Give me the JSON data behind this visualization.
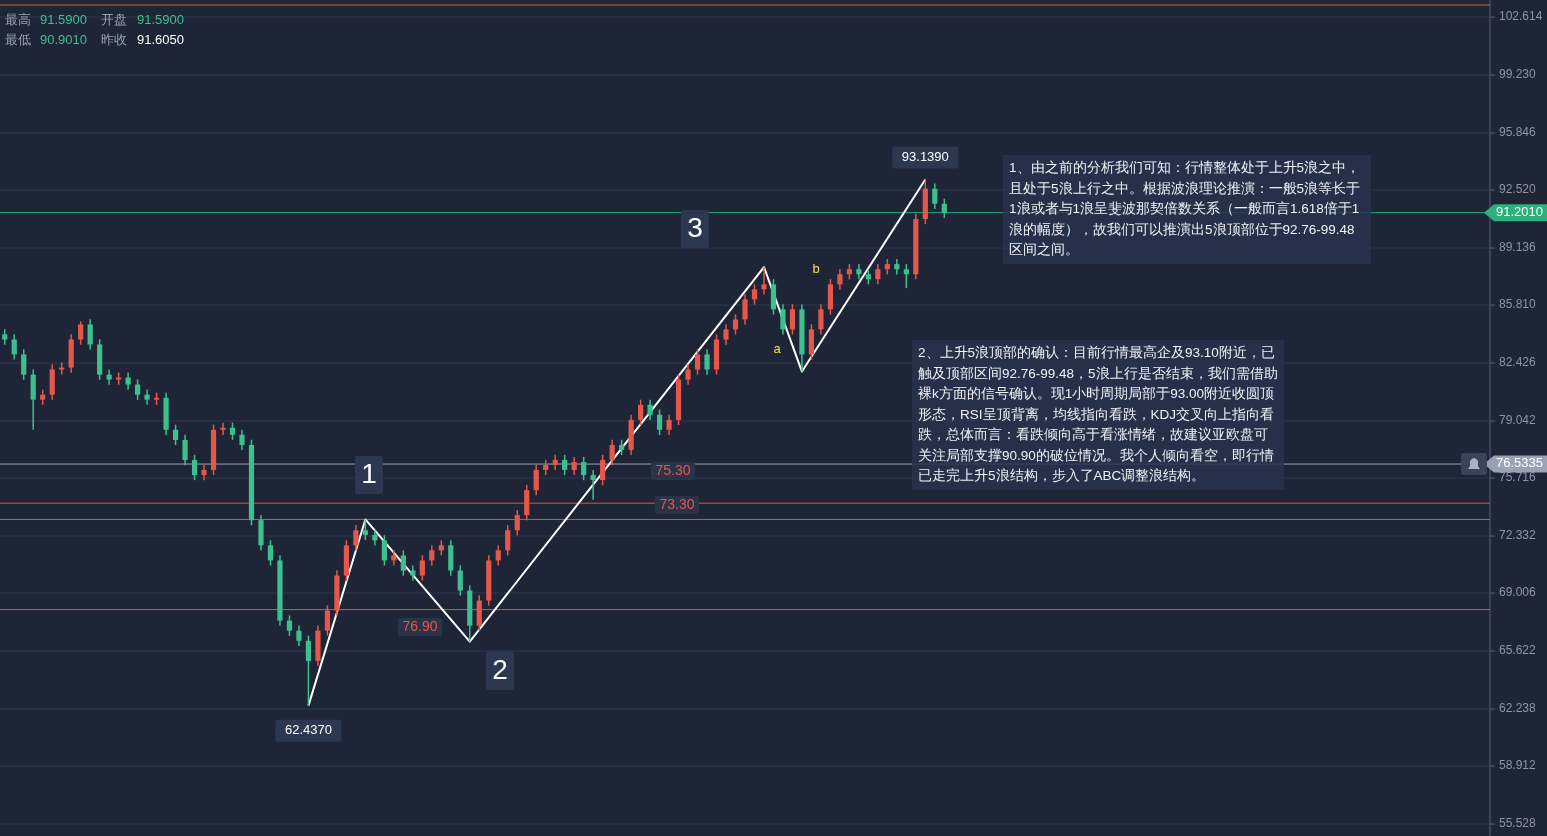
{
  "chart_data": {
    "type": "candlestick",
    "categories": [
      null,
      null,
      null,
      null,
      null,
      null,
      null,
      null,
      null,
      null,
      null,
      null,
      null,
      null,
      null,
      null,
      null,
      null,
      null,
      null,
      null,
      null,
      null,
      null,
      null,
      null,
      null,
      null,
      null,
      null,
      null,
      null,
      null,
      null,
      null,
      null,
      null,
      null,
      null,
      null,
      null,
      null,
      null,
      null,
      null,
      null,
      null,
      null,
      null,
      null,
      null,
      null,
      null,
      null,
      null,
      null,
      null,
      null,
      null,
      null,
      null,
      null,
      null,
      null,
      null,
      null,
      null,
      null,
      null,
      null,
      null,
      null,
      null,
      null,
      null,
      null,
      null,
      null,
      null,
      null,
      null,
      null,
      null,
      null,
      null,
      null,
      null,
      null,
      null,
      null,
      null,
      null,
      null,
      null,
      null,
      null,
      null,
      null,
      null,
      null,
      null,
      null,
      null,
      null,
      null,
      null,
      null,
      null,
      null,
      null,
      null,
      null,
      null,
      null,
      null,
      null,
      null,
      null,
      null,
      null,
      null,
      null,
      null,
      null,
      null,
      null,
      null,
      null,
      null,
      null,
      null,
      null,
      null,
      null,
      null,
      null,
      null,
      null,
      null,
      null,
      null,
      null,
      null,
      null,
      null,
      null,
      null,
      null,
      null,
      null,
      null,
      null,
      null,
      null,
      null,
      null,
      null
    ],
    "ohlc": [
      [
        84.1,
        84.4,
        83.5,
        83.8
      ],
      [
        83.8,
        84.1,
        82.63,
        82.93
      ],
      [
        82.93,
        83.23,
        81.45,
        81.75
      ],
      [
        81.75,
        82.05,
        78.53,
        80.29
      ],
      [
        80.29,
        80.88,
        79.99,
        80.58
      ],
      [
        80.58,
        82.35,
        80.28,
        82.05
      ],
      [
        82.05,
        82.46,
        81.75,
        82.16
      ],
      [
        82.16,
        84.1,
        81.86,
        83.8
      ],
      [
        83.8,
        84.86,
        83.5,
        84.68
      ],
      [
        84.68,
        84.98,
        83.21,
        83.51
      ],
      [
        83.51,
        83.81,
        81.45,
        81.75
      ],
      [
        81.75,
        82.05,
        81.16,
        81.46
      ],
      [
        81.46,
        81.88,
        81.16,
        81.58
      ],
      [
        81.58,
        81.88,
        80.87,
        81.17
      ],
      [
        81.17,
        81.47,
        80.28,
        80.58
      ],
      [
        80.58,
        80.88,
        79.99,
        80.29
      ],
      [
        80.29,
        80.7,
        79.99,
        80.4
      ],
      [
        80.4,
        80.7,
        78.23,
        78.53
      ],
      [
        78.53,
        78.83,
        77.64,
        77.94
      ],
      [
        77.94,
        78.24,
        76.47,
        76.77
      ],
      [
        76.77,
        77.07,
        75.59,
        75.89
      ],
      [
        75.89,
        76.49,
        75.59,
        76.19
      ],
      [
        76.19,
        78.83,
        75.89,
        78.53
      ],
      [
        78.53,
        78.95,
        78.23,
        78.65
      ],
      [
        78.65,
        78.95,
        77.94,
        78.24
      ],
      [
        78.24,
        78.54,
        77.35,
        77.65
      ],
      [
        77.65,
        77.95,
        72.96,
        73.26
      ],
      [
        73.26,
        73.56,
        71.49,
        71.79
      ],
      [
        71.79,
        72.09,
        70.61,
        70.91
      ],
      [
        70.91,
        71.21,
        67.1,
        67.4
      ],
      [
        67.4,
        67.7,
        66.51,
        66.81
      ],
      [
        66.81,
        67.11,
        65.92,
        66.22
      ],
      [
        66.22,
        66.52,
        62.437,
        65.05
      ],
      [
        65.05,
        67.11,
        64.75,
        66.81
      ],
      [
        66.81,
        68.28,
        66.51,
        67.98
      ],
      [
        67.98,
        70.33,
        67.68,
        70.03
      ],
      [
        70.03,
        72.09,
        69.73,
        71.79
      ],
      [
        71.79,
        72.97,
        71.49,
        72.67
      ],
      [
        72.67,
        73.3,
        72.1,
        72.4
      ],
      [
        72.4,
        72.7,
        71.78,
        72.08
      ],
      [
        72.08,
        72.38,
        70.61,
        70.91
      ],
      [
        70.91,
        71.5,
        70.61,
        71.2
      ],
      [
        71.2,
        71.5,
        70.02,
        70.32
      ],
      [
        70.32,
        70.62,
        69.73,
        70.03
      ],
      [
        70.03,
        71.21,
        69.73,
        70.91
      ],
      [
        70.91,
        71.8,
        70.61,
        71.5
      ],
      [
        71.5,
        72.09,
        71.2,
        71.79
      ],
      [
        71.79,
        72.09,
        70.02,
        70.32
      ],
      [
        70.32,
        70.62,
        68.85,
        69.15
      ],
      [
        69.15,
        69.45,
        66.17,
        67.1
      ],
      [
        67.1,
        68.87,
        66.8,
        68.57
      ],
      [
        68.57,
        71.21,
        68.27,
        70.91
      ],
      [
        70.91,
        71.8,
        70.61,
        71.5
      ],
      [
        71.5,
        72.97,
        71.2,
        72.67
      ],
      [
        72.67,
        73.85,
        72.37,
        73.55
      ],
      [
        73.55,
        75.31,
        73.25,
        75.01
      ],
      [
        75.01,
        76.49,
        74.71,
        76.19
      ],
      [
        76.19,
        76.78,
        75.89,
        76.48
      ],
      [
        76.48,
        77.07,
        76.18,
        76.77
      ],
      [
        76.77,
        77.07,
        75.89,
        76.19
      ],
      [
        76.19,
        76.95,
        75.89,
        76.65
      ],
      [
        76.65,
        76.95,
        75.59,
        75.89
      ],
      [
        75.89,
        76.19,
        74.45,
        75.6
      ],
      [
        75.6,
        77.07,
        75.3,
        76.77
      ],
      [
        76.77,
        77.95,
        76.47,
        77.65
      ],
      [
        77.65,
        77.95,
        77.06,
        77.36
      ],
      [
        77.36,
        79.41,
        77.06,
        79.11
      ],
      [
        79.11,
        80.29,
        78.81,
        79.99
      ],
      [
        79.99,
        80.29,
        79.11,
        79.41
      ],
      [
        79.41,
        79.71,
        78.23,
        78.53
      ],
      [
        78.53,
        79.41,
        78.23,
        79.11
      ],
      [
        79.11,
        81.76,
        78.81,
        81.46
      ],
      [
        81.46,
        82.35,
        81.16,
        82.05
      ],
      [
        82.05,
        83.23,
        81.75,
        82.93
      ],
      [
        82.93,
        83.23,
        81.75,
        82.05
      ],
      [
        82.05,
        84.1,
        81.75,
        83.8
      ],
      [
        83.8,
        84.69,
        83.5,
        84.39
      ],
      [
        84.39,
        85.27,
        84.09,
        84.97
      ],
      [
        84.97,
        86.44,
        84.67,
        86.14
      ],
      [
        86.14,
        87.03,
        85.84,
        86.73
      ],
      [
        86.73,
        88.02,
        86.43,
        87.02
      ],
      [
        87.02,
        87.32,
        85.26,
        85.56
      ],
      [
        85.56,
        85.86,
        84.09,
        84.39
      ],
      [
        84.39,
        85.86,
        84.09,
        85.56
      ],
      [
        85.56,
        85.86,
        81.93,
        82.93
      ],
      [
        82.93,
        84.69,
        82.63,
        84.39
      ],
      [
        84.39,
        85.86,
        84.09,
        85.56
      ],
      [
        85.56,
        87.32,
        85.26,
        87.02
      ],
      [
        87.02,
        87.91,
        86.72,
        87.61
      ],
      [
        87.61,
        88.2,
        87.31,
        87.9
      ],
      [
        87.9,
        88.2,
        87.31,
        87.61
      ],
      [
        87.61,
        87.91,
        87.02,
        87.32
      ],
      [
        87.32,
        88.2,
        87.02,
        87.9
      ],
      [
        87.9,
        88.5,
        87.6,
        88.2
      ],
      [
        88.2,
        88.5,
        87.6,
        87.9
      ],
      [
        87.9,
        88.2,
        86.8,
        87.61
      ],
      [
        87.61,
        91.13,
        87.31,
        90.83
      ],
      [
        90.83,
        93.139,
        90.53,
        92.6
      ],
      [
        92.6,
        92.9,
        91.42,
        91.72
      ],
      [
        91.72,
        92.02,
        90.9,
        91.2
      ],
      null,
      null,
      null,
      null,
      null,
      null,
      null,
      null,
      null,
      null,
      null,
      null,
      null,
      null,
      null,
      null,
      null,
      null,
      null,
      null,
      null,
      null,
      null,
      null,
      null,
      null,
      null,
      null,
      null,
      null,
      null,
      null,
      null,
      null,
      null,
      null,
      null,
      null,
      null,
      null,
      null,
      null,
      null,
      null,
      null,
      null,
      null,
      null,
      null,
      null,
      null,
      null,
      null,
      null,
      null,
      null,
      null
    ],
    "colors": [
      "#3dbf90",
      "#3dbf90",
      "#3dbf90",
      "#3dbf90",
      "#e5574a",
      "#e5574a",
      "#e5574a",
      "#e5574a",
      "#e5574a",
      "#3dbf90",
      "#3dbf90",
      "#3dbf90",
      "#e5574a",
      "#3dbf90",
      "#3dbf90",
      "#3dbf90",
      "#e5574a",
      "#3dbf90",
      "#3dbf90",
      "#3dbf90",
      "#3dbf90",
      "#e5574a",
      "#e5574a",
      "#e5574a",
      "#3dbf90",
      "#3dbf90",
      "#3dbf90",
      "#3dbf90",
      "#3dbf90",
      "#3dbf90",
      "#3dbf90",
      "#3dbf90",
      "#3dbf90",
      "#e5574a",
      "#e5574a",
      "#e5574a",
      "#e5574a",
      "#e5574a",
      "#3dbf90",
      "#3dbf90",
      "#3dbf90",
      "#e5574a",
      "#3dbf90",
      "#3dbf90",
      "#e5574a",
      "#e5574a",
      "#e5574a",
      "#3dbf90",
      "#3dbf90",
      "#3dbf90",
      "#e5574a",
      "#e5574a",
      "#e5574a",
      "#e5574a",
      "#e5574a",
      "#e5574a",
      "#e5574a",
      "#e5574a",
      "#e5574a",
      "#3dbf90",
      "#e5574a",
      "#3dbf90",
      "#3dbf90",
      "#e5574a",
      "#e5574a",
      "#3dbf90",
      "#e5574a",
      "#e5574a",
      "#3dbf90",
      "#3dbf90",
      "#e5574a",
      "#e5574a",
      "#e5574a",
      "#e5574a",
      "#3dbf90",
      "#e5574a",
      "#e5574a",
      "#e5574a",
      "#e5574a",
      "#e5574a",
      "#e5574a",
      "#3dbf90",
      "#3dbf90",
      "#e5574a",
      "#3dbf90",
      "#e5574a",
      "#e5574a",
      "#e5574a",
      "#e5574a",
      "#e5574a",
      "#3dbf90",
      "#3dbf90",
      "#e5574a",
      "#e5574a",
      "#3dbf90",
      "#3dbf90",
      "#e5574a",
      "#e5574a",
      "#3dbf90",
      "#3dbf90",
      null,
      null,
      null,
      null,
      null,
      null,
      null,
      null,
      null,
      null,
      null,
      null,
      null,
      null,
      null,
      null,
      null,
      null,
      null,
      null,
      null,
      null,
      null,
      null,
      null,
      null,
      null,
      null,
      null,
      null,
      null,
      null,
      null,
      null,
      null,
      null,
      null,
      null,
      null,
      null,
      null,
      null,
      null,
      null,
      null,
      null,
      null,
      null,
      null,
      null,
      null,
      null,
      null,
      null,
      null,
      null,
      null
    ],
    "series": [
      {
        "type": "line",
        "color": "#ffffff",
        "values": [
          null,
          null,
          null,
          null,
          null,
          null,
          null,
          null,
          null,
          null,
          null,
          null,
          null,
          null,
          null,
          null,
          null,
          null,
          null,
          null,
          null,
          null,
          null,
          null,
          null,
          null,
          null,
          null,
          null,
          null,
          null,
          null,
          62.437,
          null,
          null,
          null,
          null,
          null,
          73.3,
          null,
          null,
          null,
          null,
          null,
          null,
          null,
          null,
          null,
          null,
          66.17,
          null,
          null,
          null,
          null,
          null,
          null,
          null,
          null,
          null,
          null,
          null,
          null,
          null,
          null,
          null,
          null,
          null,
          null,
          null,
          null,
          null,
          null,
          null,
          null,
          null,
          null,
          null,
          null,
          null,
          null,
          88.02,
          null,
          null,
          null,
          81.93,
          null,
          null,
          null,
          null,
          null,
          null,
          null,
          null,
          null,
          null,
          null,
          null,
          93.139,
          null,
          null,
          null,
          null,
          null,
          null,
          null,
          null,
          null,
          null,
          null,
          null,
          null,
          null,
          null,
          null,
          null,
          null,
          null,
          null,
          null,
          null,
          null,
          null,
          null,
          null,
          null,
          null,
          null,
          null,
          null,
          null,
          null,
          null,
          null,
          null,
          null,
          null,
          null,
          null,
          null,
          null,
          null,
          null,
          null,
          null,
          null,
          null,
          null,
          null,
          null,
          null,
          null,
          null,
          null,
          null,
          null,
          null,
          null
        ]
      }
    ],
    "ylim": [
      54.83,
      103.61
    ],
    "yticks": [
      {
        "value": 102.614,
        "label": "102.614"
      },
      {
        "value": 99.23,
        "label": "99.230"
      },
      {
        "value": 95.846,
        "label": "95.846"
      },
      {
        "value": 92.52,
        "label": "92.520"
      },
      {
        "value": 89.136,
        "label": "89.136"
      },
      {
        "value": 85.81,
        "label": "85.810"
      },
      {
        "value": 82.426,
        "label": "82.426"
      },
      {
        "value": 79.042,
        "label": "79.042"
      },
      {
        "value": 75.716,
        "label": "75.716"
      },
      {
        "value": 72.332,
        "label": "72.332"
      },
      {
        "value": 69.006,
        "label": "69.006"
      },
      {
        "value": 65.622,
        "label": "65.622"
      },
      {
        "value": 62.238,
        "label": "62.238"
      },
      {
        "value": 58.912,
        "label": "58.912"
      },
      {
        "value": 55.528,
        "label": "55.528"
      }
    ],
    "tick_labels": "y",
    "grid": "y",
    "ref_lines": [
      {
        "axis": "y",
        "value": 103.32,
        "color": "#c8643c"
      },
      {
        "axis": "y",
        "value": 74.25,
        "color": "#d9553f"
      },
      {
        "axis": "y",
        "value": 73.3,
        "color": "#d9553f"
      },
      {
        "axis": "y",
        "value": 68.04,
        "color": "#d9553f"
      },
      {
        "axis": "y",
        "value": 76.5335,
        "label": "76.5335",
        "color": "#9aa3b5"
      },
      {
        "axis": "y",
        "value": 91.201,
        "label": "91.2010",
        "color": "#2fae7e"
      }
    ],
    "annotations": [
      "最高",
      "91.5900",
      "开盘",
      "91.5900",
      "最低",
      "90.9010",
      "昨收",
      "91.6050",
      "1、由之前的分析我们可知：行情整体处于上升5浪之中，且处于5浪上行之中。根据波浪理论推演：一般5浪等长于1浪或者与1浪呈斐波那契倍数关系（一般而言1.618倍于1浪的幅度），故我们可以推演出5浪顶部位于92.76-99.48区间之间。",
      "2、上升5浪顶部的确认：目前行情最高企及93.10附近，已触及顶部区间92.76-99.48，5浪上行是否结束，我们需借助裸k方面的信号确认。现1小时周期局部于93.00附近收圆顶形态，RSI呈顶背离，均线指向看跌，KDJ交叉向上指向看跌，总体而言：看跌倾向高于看涨情绪，故建议亚欧盘可关注局部支撑90.90的破位情况。我个人倾向看空，即行情已走完上升5浪结构，步入了ABC调整浪结构。",
      "93.1390",
      "62.4370",
      "1",
      "2",
      "3",
      "a",
      "b",
      "76.90",
      "75.30",
      "73.30"
    ]
  }
}
